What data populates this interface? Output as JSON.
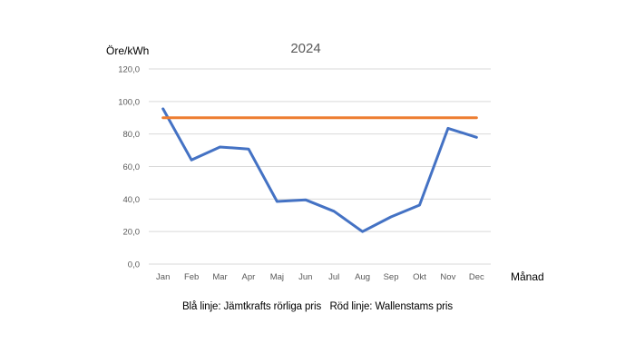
{
  "chart_data": {
    "type": "line",
    "title": "2024",
    "ylabel": "Öre/kWh",
    "xlabel": "Månad",
    "categories": [
      "Jan",
      "Feb",
      "Mar",
      "Apr",
      "Maj",
      "Jun",
      "Jul",
      "Aug",
      "Sep",
      "Okt",
      "Nov",
      "Dec"
    ],
    "ylim": [
      0,
      120
    ],
    "yticks": [
      "0,0",
      "20,0",
      "40,0",
      "60,0",
      "80,0",
      "100,0",
      "120,0"
    ],
    "ytick_values": [
      0,
      20,
      40,
      60,
      80,
      100,
      120
    ],
    "grid": true,
    "series": [
      {
        "values": [
          95.5,
          64.0,
          72.0,
          70.8,
          38.5,
          39.5,
          32.5,
          20.0,
          29.0,
          36.3,
          83.5,
          78.0
        ],
        "color": "#4472C4"
      },
      {
        "values": [
          90.0,
          90.0,
          90.0,
          90.0,
          90.0,
          90.0,
          90.0,
          90.0,
          90.0,
          90.0,
          90.0,
          90.0
        ],
        "color": "#ED7D31"
      }
    ]
  },
  "caption": {
    "blue": "Blå linje: Jämtkrafts rörliga pris",
    "red": "Röd linje: Wallenstams pris"
  }
}
